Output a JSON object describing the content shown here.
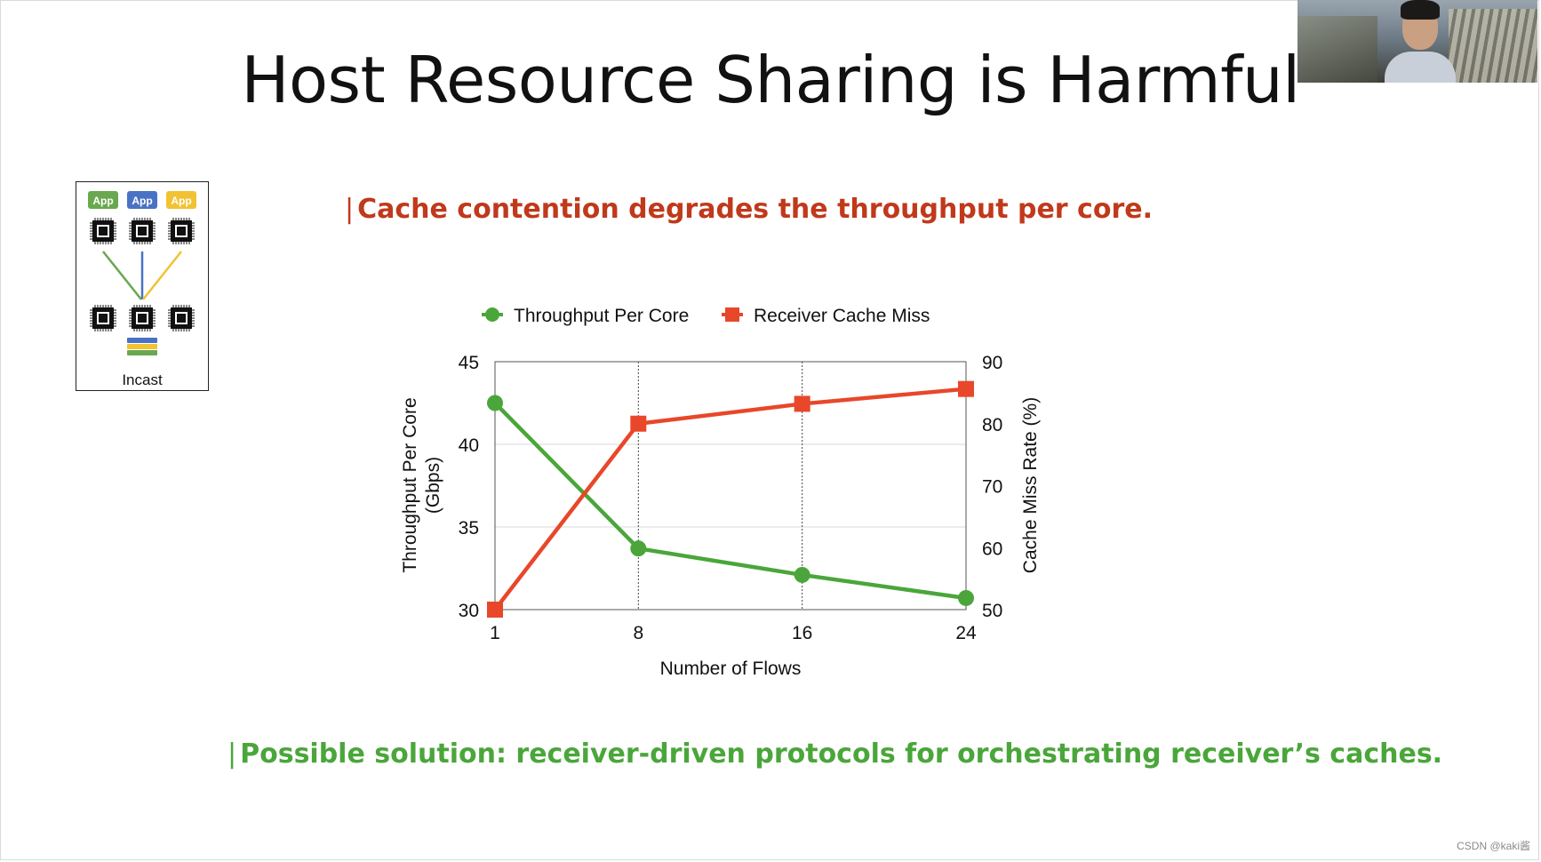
{
  "slide": {
    "title": "Host Resource Sharing is Harmful",
    "bullet_top": {
      "bar": "|",
      "text": "Cache contention degrades the throughput per core."
    },
    "bullet_bottom": {
      "bar": "|",
      "text": "Possible solution: receiver-driven protocols for orchestrating receiver’s caches."
    },
    "watermark": "CSDN @kaki酱"
  },
  "diagram": {
    "app_labels": [
      "App",
      "App",
      "App"
    ],
    "app_colors": [
      "#6aa84f",
      "#4a72c4",
      "#f1c232"
    ],
    "caption": "Incast"
  },
  "colors": {
    "throughput": "#4aa63a",
    "cache_miss": "#e8472a",
    "title_red": "#c0391b",
    "solution_green": "#4aa63a"
  },
  "chart_data": {
    "type": "line",
    "x": [
      1,
      8,
      16,
      24
    ],
    "x_tick_labels": [
      "1",
      "8",
      "16",
      "24"
    ],
    "xlabel": "Number of Flows",
    "ylabel_left_line1": "Throughput Per Core",
    "ylabel_left_line2": "(Gbps)",
    "ylabel_right": "Cache Miss Rate (%)",
    "ylim_left": [
      30,
      45
    ],
    "ylim_right": [
      50,
      90
    ],
    "left_ticks": [
      "30",
      "35",
      "40",
      "45"
    ],
    "right_ticks": [
      "50",
      "60",
      "70",
      "80",
      "90"
    ],
    "legend_position": "top",
    "series": [
      {
        "name": "Throughput Per Core",
        "axis": "left",
        "marker": "circle",
        "values": [
          42.5,
          33.7,
          32.1,
          30.7
        ]
      },
      {
        "name": "Receiver Cache Miss",
        "axis": "right",
        "marker": "square",
        "values": [
          50,
          80,
          83.2,
          85.6
        ]
      }
    ]
  }
}
